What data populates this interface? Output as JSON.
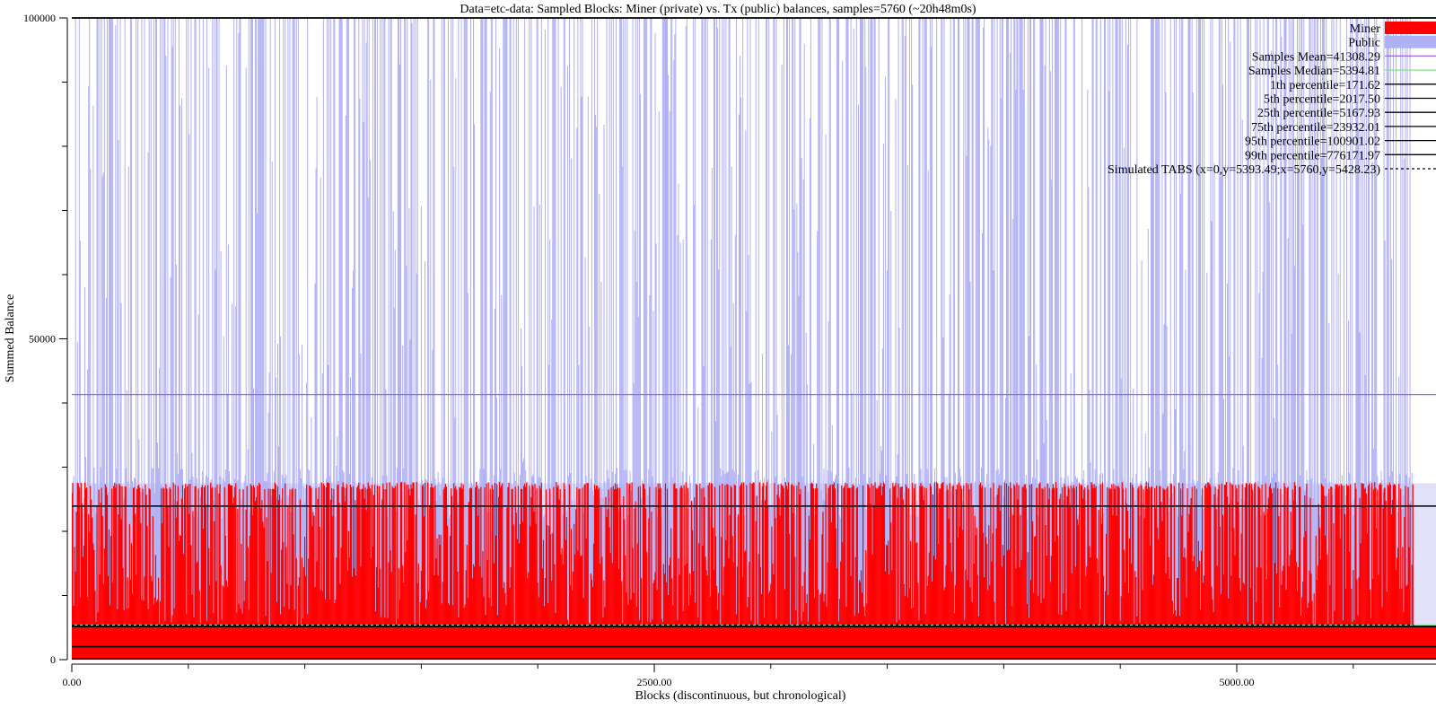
{
  "chart_data": {
    "type": "bar",
    "title": "Data=etc-data: Sampled Blocks: Miner (private) vs. Tx (public) balances, samples=5760 (~20h48m0s)",
    "xlabel": "Blocks (discontinuous, but chronological)",
    "ylabel": "Summed Balance",
    "xlim": [
      0,
      5760
    ],
    "ylim": [
      0,
      100000
    ],
    "x_ticks": [
      {
        "value": 0,
        "label": "0.00"
      },
      {
        "value": 2500,
        "label": "2500.00"
      },
      {
        "value": 5000,
        "label": "5000.00"
      }
    ],
    "y_ticks": [
      {
        "value": 0,
        "label": "0"
      },
      {
        "value": 50000,
        "label": "50000"
      },
      {
        "value": 100000,
        "label": "100000"
      }
    ],
    "grid": false,
    "legend_position": "top-right",
    "series": [
      {
        "name": "Miner",
        "type": "bar",
        "color": "#ff0000",
        "approx_max": 27500,
        "approx_min": 0
      },
      {
        "name": "Public",
        "type": "bar",
        "color": "#b0b0f4",
        "approx_max": 100000,
        "approx_min": 0
      }
    ],
    "reference_lines": [
      {
        "name": "Samples Mean=41308.29",
        "y": 41308.29,
        "color": "#9966dd",
        "style": "solid"
      },
      {
        "name": "Samples Median=5394.81",
        "y": 5394.81,
        "color": "#88dd88",
        "style": "solid"
      },
      {
        "name": "1th percentile=171.62",
        "y": 171.62,
        "color": "#000000",
        "style": "solid"
      },
      {
        "name": "5th percentile=2017.50",
        "y": 2017.5,
        "color": "#000000",
        "style": "solid"
      },
      {
        "name": "25th percentile=5167.93",
        "y": 5167.93,
        "color": "#000000",
        "style": "solid"
      },
      {
        "name": "75th percentile=23932.01",
        "y": 23932.01,
        "color": "#000000",
        "style": "solid"
      },
      {
        "name": "95th percentile=100901.02",
        "y": 100901.02,
        "color": "#000000",
        "style": "solid"
      },
      {
        "name": "99th percentile=776171.97",
        "y": 776171.97,
        "color": "#000000",
        "style": "solid"
      },
      {
        "name": "Simulated TABS (x=0,y=5393.49;x=5760,y=5428.23)",
        "points": [
          [
            0,
            5393.49
          ],
          [
            5760,
            5428.23
          ]
        ],
        "color": "#000000",
        "style": "dashed"
      }
    ]
  }
}
